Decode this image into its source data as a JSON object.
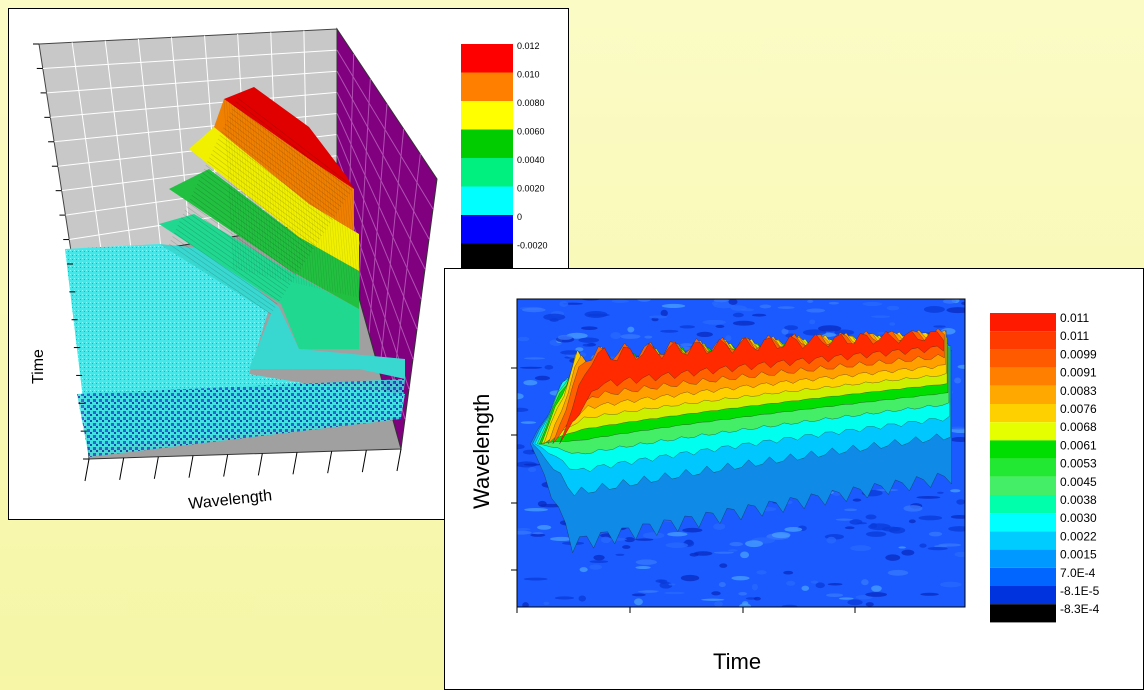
{
  "chart_data": [
    {
      "type": "surface",
      "xlabel": "Wavelength",
      "ylabel": "Time",
      "colorbar": {
        "levels": [
          -0.002,
          0,
          0.002,
          0.004,
          0.006,
          0.008,
          0.01,
          0.012
        ],
        "labels": [
          "0.012",
          "0.010",
          "0.0080",
          "0.0060",
          "0.0040",
          "0.0020",
          "0",
          "-0.0020"
        ],
        "colors": [
          "#ff0000",
          "#ff8000",
          "#ffff00",
          "#00cc00",
          "#00f080",
          "#00ffff",
          "#0000ff",
          "#000000"
        ]
      },
      "panel_colors": {
        "back_wall": "#c8c8c8",
        "side_wall": "#800080",
        "floor": "#a0a0a0"
      }
    },
    {
      "type": "heatmap",
      "xlabel": "Time",
      "ylabel": "Wavelength",
      "colorbar": {
        "labels": [
          "0.011",
          "0.011",
          "0.0099",
          "0.0091",
          "0.0083",
          "0.0076",
          "0.0068",
          "0.0061",
          "0.0053",
          "0.0045",
          "0.0038",
          "0.0030",
          "0.0022",
          "0.0015",
          "7.0E-4",
          "-8.1E-5",
          "-8.3E-4"
        ],
        "colors": [
          "#ff1a00",
          "#ff3b00",
          "#ff5a00",
          "#ff8000",
          "#ffa800",
          "#ffd000",
          "#e6ff00",
          "#00dd00",
          "#22e833",
          "#44ee66",
          "#00ffaa",
          "#00ffff",
          "#00ccff",
          "#0099ff",
          "#0066ff",
          "#0033dd",
          "#000000"
        ]
      },
      "background": "#1a5aff"
    }
  ]
}
